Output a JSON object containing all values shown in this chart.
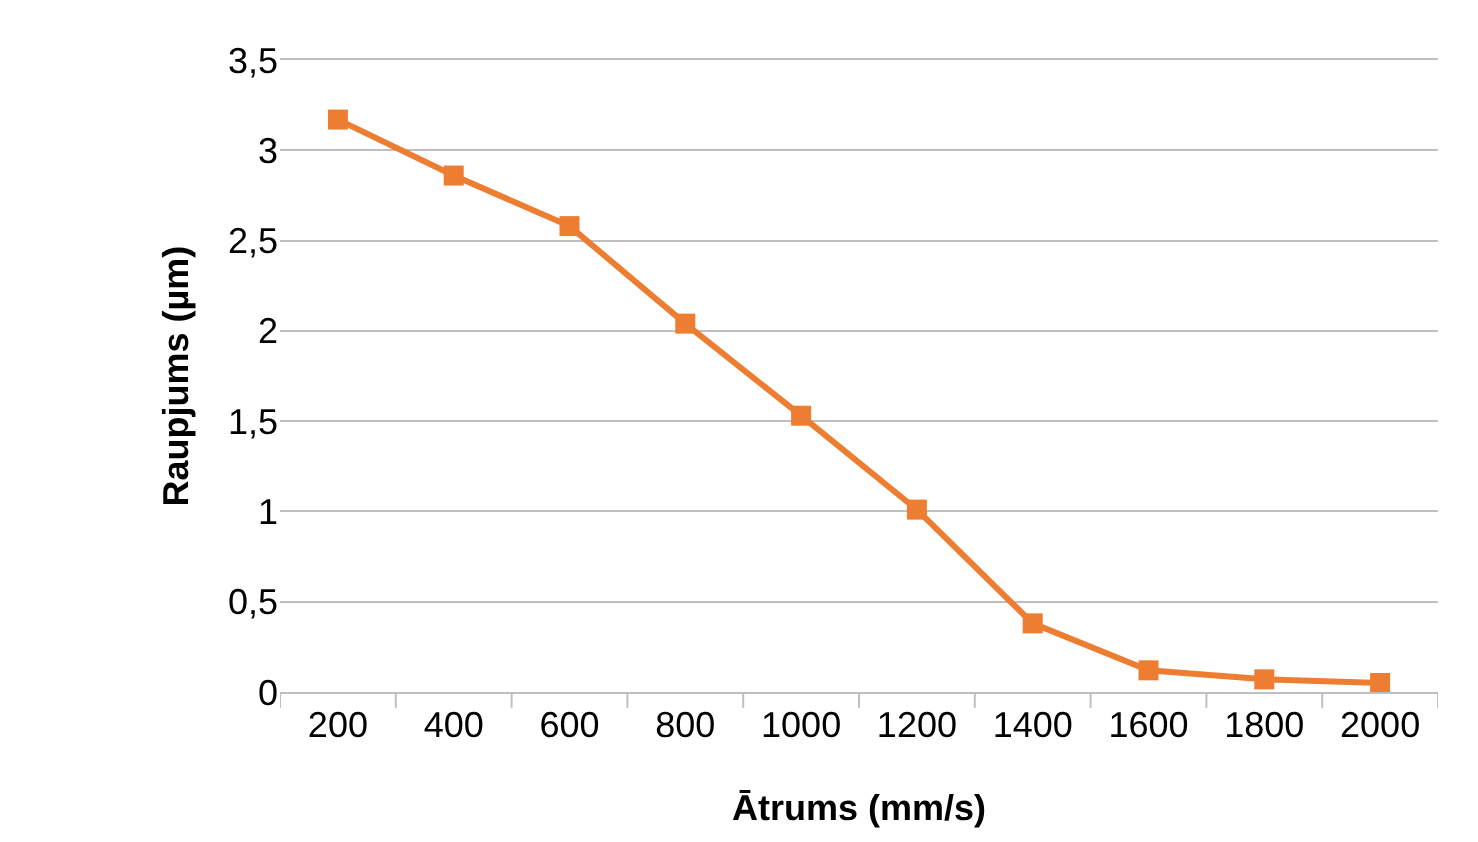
{
  "chart_data": {
    "type": "line",
    "xlabel": "Ātrums (mm/s)",
    "ylabel": "Raupjums (µm)",
    "categories": [
      "200",
      "400",
      "600",
      "800",
      "1000",
      "1200",
      "1400",
      "1600",
      "1800",
      "2000"
    ],
    "series": [
      {
        "color": "#ed7d31",
        "values": [
          3.17,
          2.86,
          2.58,
          2.04,
          1.53,
          1.01,
          0.38,
          0.12,
          0.07,
          0.05
        ]
      }
    ],
    "ylim": [
      0,
      3.5
    ],
    "yticks": [
      0,
      {
        "value": 0.5,
        "label": "0,5"
      },
      1,
      {
        "value": 1.5,
        "label": "1,5"
      },
      2,
      {
        "value": 2.5,
        "label": "2,5"
      },
      3,
      {
        "value": 3.5,
        "label": "3,5"
      }
    ],
    "grid": "y",
    "marker": "square",
    "line_style": "solid"
  }
}
